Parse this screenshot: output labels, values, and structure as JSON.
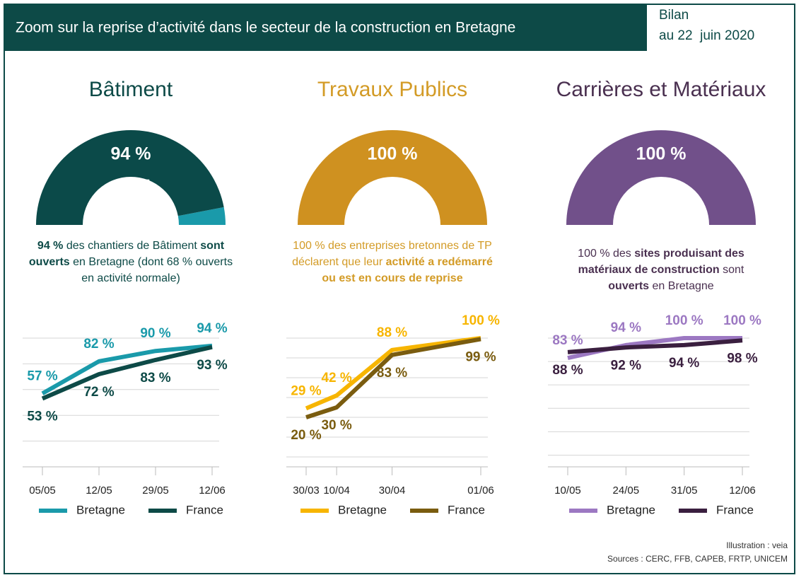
{
  "header": {
    "title": "Zoom sur la reprise d’activité dans le secteur de la construction en Bretagne",
    "date_label": "Bilan",
    "date": "au 22  juin 2020"
  },
  "footer": {
    "illustration": "Illustration : veia",
    "sources": "Sources : CERC, FFB, CAPEB, FRTP, UNICEM"
  },
  "chart_data": [
    {
      "type": "line",
      "title": "Bâtiment",
      "title_color": "#0d4a47",
      "gauge": {
        "value": 94,
        "label": "94 %",
        "lim": [
          0,
          100
        ],
        "color": "#0b4a49",
        "rest_color": "#1a9aaa"
      },
      "description": {
        "color": "#0d4a47",
        "segments": [
          {
            "text": "94 %",
            "bold": true
          },
          {
            "text": " des chantiers de Bâtiment ",
            "bold": false
          },
          {
            "text": "sont ouverts",
            "bold": true
          },
          {
            "text": " en Bretagne (dont 68 % ouverts en activité normale)",
            "bold": false
          }
        ]
      },
      "x": [
        "05/05",
        "12/05",
        "29/05",
        "12/06"
      ],
      "x_scale": "category",
      "ylim": [
        0,
        100
      ],
      "yticks": [
        0,
        20,
        40,
        60,
        80,
        100
      ],
      "grid": true,
      "series": [
        {
          "name": "Bretagne",
          "color": "#1a9aaa",
          "values": [
            57,
            82,
            90,
            94
          ],
          "value_labels": [
            "57 %",
            "82 %",
            "90 %",
            "94 %"
          ]
        },
        {
          "name": "France",
          "color": "#0d4a47",
          "values": [
            53,
            72,
            83,
            93
          ],
          "value_labels": [
            "53 %",
            "72 %",
            "83 %",
            "93 %"
          ]
        }
      ]
    },
    {
      "type": "line",
      "title": "Travaux Publics",
      "title_color": "#d39b26",
      "gauge": {
        "value": 100,
        "label": "100 %",
        "lim": [
          0,
          100
        ],
        "color": "#cf9120",
        "rest_color": "#f2c45a"
      },
      "description": {
        "color": "#d39b26",
        "segments": [
          {
            "text": "100 % des entreprises bretonnes de TP déclarent que leur ",
            "bold": false
          },
          {
            "text": "activité a redémarré ou est en cours de reprise",
            "bold": true
          }
        ]
      },
      "x": [
        "30/03",
        "10/04",
        "30/04",
        "01/06"
      ],
      "x_scale": "time",
      "ylim": [
        -30,
        100
      ],
      "yticks": [
        -20,
        0,
        20,
        40,
        60,
        80,
        100
      ],
      "grid": true,
      "series": [
        {
          "name": "Bretagne",
          "color": "#f7b500",
          "values": [
            29,
            42,
            88,
            100
          ],
          "value_labels": [
            "29 %",
            "42 %",
            "88 %",
            "100 %"
          ]
        },
        {
          "name": "France",
          "color": "#7a5c0f",
          "values": [
            20,
            30,
            83,
            99
          ],
          "value_labels": [
            "20 %",
            "30 %",
            "83 %",
            "99 %"
          ]
        }
      ]
    },
    {
      "type": "line",
      "title": "Carrières et Matériaux",
      "title_color": "#4a3050",
      "gauge": {
        "value": 100,
        "label": "100 %",
        "lim": [
          0,
          100
        ],
        "color": "#71508a",
        "rest_color": "#a98cc4"
      },
      "description": {
        "color": "#4a3050",
        "segments": [
          {
            "text": "100 % des ",
            "bold": false
          },
          {
            "text": "sites produisant des matériaux de construction",
            "bold": true
          },
          {
            "text": " sont ",
            "bold": false
          },
          {
            "text": "ouverts",
            "bold": true
          },
          {
            "text": " en Bretagne",
            "bold": false
          }
        ]
      },
      "x": [
        "10/05",
        "24/05",
        "31/05",
        "12/06"
      ],
      "x_scale": "category",
      "ylim": [
        -10,
        100
      ],
      "yticks": [
        0,
        20,
        40,
        60,
        80,
        100
      ],
      "grid": true,
      "series": [
        {
          "name": "Bretagne",
          "color": "#9c78c2",
          "values": [
            83,
            94,
            100,
            100
          ],
          "value_labels": [
            "83 %",
            "94 %",
            "100 %",
            "100 %"
          ]
        },
        {
          "name": "France",
          "color": "#3a1f3f",
          "values": [
            88,
            92,
            94,
            98
          ],
          "value_labels": [
            "88 %",
            "92 %",
            "94 %",
            "98 %"
          ]
        }
      ]
    }
  ]
}
